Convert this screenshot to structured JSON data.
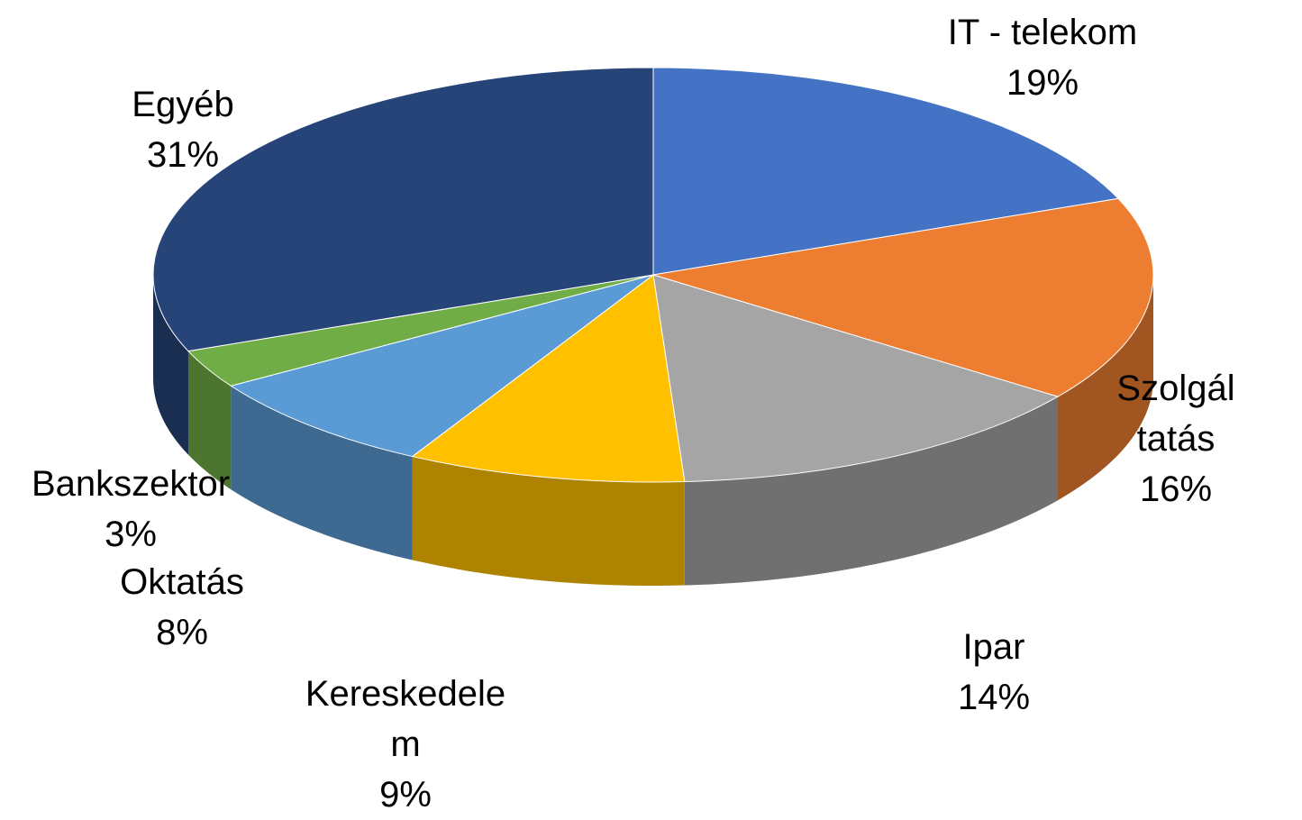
{
  "chart_data": {
    "type": "pie3d",
    "categories": [
      "IT - telekom",
      "Szolgáltatás",
      "Ipar",
      "Kereskedelem",
      "Oktatás",
      "Bankszektor",
      "Egyéb"
    ],
    "values": [
      19,
      16,
      14,
      9,
      8,
      3,
      31
    ],
    "value_labels": [
      "19%",
      "16%",
      "14%",
      "9%",
      "8%",
      "3%",
      "31%"
    ],
    "colors": [
      "#4472c4",
      "#ed7d31",
      "#a5a5a5",
      "#ffc000",
      "#5b9bd5",
      "#70ad47",
      "#264478"
    ]
  }
}
